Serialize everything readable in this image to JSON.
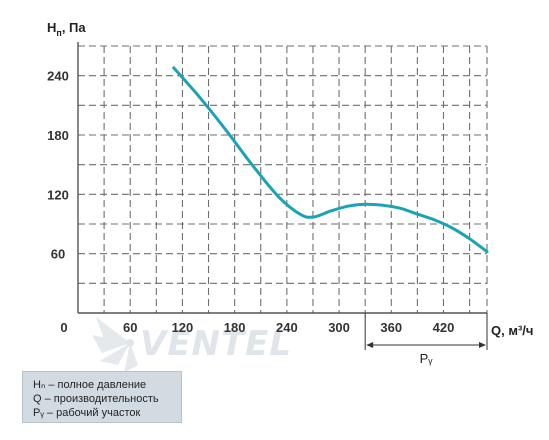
{
  "chart_data": {
    "type": "line",
    "ylabel": "Hₙ, Па",
    "xlabel": "Q, м³/ч",
    "origin_label": "0",
    "x_ticks": [
      60,
      120,
      180,
      240,
      300,
      360,
      420
    ],
    "y_ticks": [
      60,
      120,
      180,
      240
    ],
    "xlim": [
      0,
      470
    ],
    "ylim": [
      0,
      270
    ],
    "grid": true,
    "series": [
      {
        "color": "#1aa3b5",
        "x": [
          110,
          140,
          170,
          200,
          230,
          255,
          270,
          290,
          310,
          330,
          350,
          370,
          390,
          410,
          430,
          450,
          470
        ],
        "y": [
          248,
          218,
          185,
          150,
          118,
          100,
          97,
          103,
          108,
          110,
          109,
          106,
          100,
          94,
          86,
          75,
          62
        ]
      }
    ],
    "annotations": {
      "working_range": {
        "label": "Pᵧ",
        "x_start": 330,
        "x_end": 470
      }
    },
    "legend": [
      "Hₙ – полное давление",
      "Q – производительность",
      "Pᵧ – рабочий участок"
    ],
    "legend_placement": "bottom-left",
    "watermark": "VENTEL"
  },
  "colors": {
    "curve": "#1aa3b5",
    "grid": "#6f6f6f",
    "legend_background": "#d3dbe2"
  }
}
